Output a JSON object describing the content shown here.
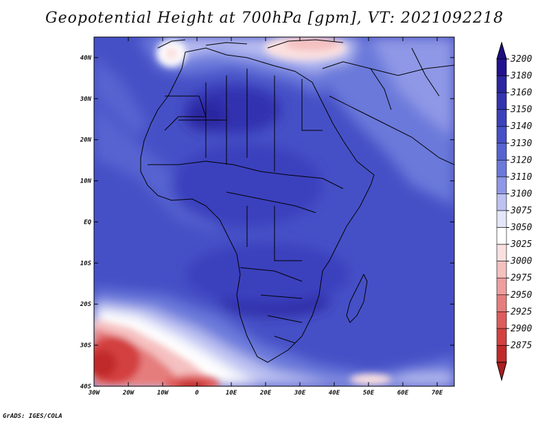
{
  "title": "Geopotential Height at 700hPa [gpm], VT: 2021092218",
  "credit": "GrADS: IGES/COLA",
  "map": {
    "lon_range": [
      -30,
      75
    ],
    "lat_range": [
      -40,
      45
    ],
    "lon_ticks": [
      {
        "value": -30,
        "label": "30W"
      },
      {
        "value": -20,
        "label": "20W"
      },
      {
        "value": -10,
        "label": "10W"
      },
      {
        "value": 0,
        "label": "0"
      },
      {
        "value": 10,
        "label": "10E"
      },
      {
        "value": 20,
        "label": "20E"
      },
      {
        "value": 30,
        "label": "30E"
      },
      {
        "value": 40,
        "label": "40E"
      },
      {
        "value": 50,
        "label": "50E"
      },
      {
        "value": 60,
        "label": "60E"
      },
      {
        "value": 70,
        "label": "70E"
      }
    ],
    "lat_ticks": [
      {
        "value": 40,
        "label": "40N"
      },
      {
        "value": 30,
        "label": "30N"
      },
      {
        "value": 20,
        "label": "20N"
      },
      {
        "value": 10,
        "label": "10N"
      },
      {
        "value": 0,
        "label": "EQ"
      },
      {
        "value": -10,
        "label": "10S"
      },
      {
        "value": -20,
        "label": "20S"
      },
      {
        "value": -30,
        "label": "30S"
      },
      {
        "value": -40,
        "label": "40S"
      }
    ]
  },
  "colorbar": {
    "levels": [
      {
        "label": "3200",
        "color": "#23138f"
      },
      {
        "label": "3180",
        "color": "#2b25a0"
      },
      {
        "label": "3160",
        "color": "#3333b0"
      },
      {
        "label": "3150",
        "color": "#3b40bd"
      },
      {
        "label": "3140",
        "color": "#4650c6"
      },
      {
        "label": "3130",
        "color": "#5663d0"
      },
      {
        "label": "3120",
        "color": "#6b79da"
      },
      {
        "label": "3110",
        "color": "#8f98e6"
      },
      {
        "label": "3100",
        "color": "#bdc2f2"
      },
      {
        "label": "3075",
        "color": "#e4e6fa"
      },
      {
        "label": "3050",
        "color": "#ffffff"
      },
      {
        "label": "3025",
        "color": "#fbe0e0"
      },
      {
        "label": "3000",
        "color": "#f5c0c0"
      },
      {
        "label": "2975",
        "color": "#ee9e9e"
      },
      {
        "label": "2950",
        "color": "#e67d7d"
      },
      {
        "label": "2925",
        "color": "#de5c5c"
      },
      {
        "label": "2900",
        "color": "#d34040"
      },
      {
        "label": "2875",
        "color": "#c12a2a"
      }
    ],
    "top_arrow_color": "#1e0f80",
    "bottom_arrow_color": "#a81f1f"
  }
}
